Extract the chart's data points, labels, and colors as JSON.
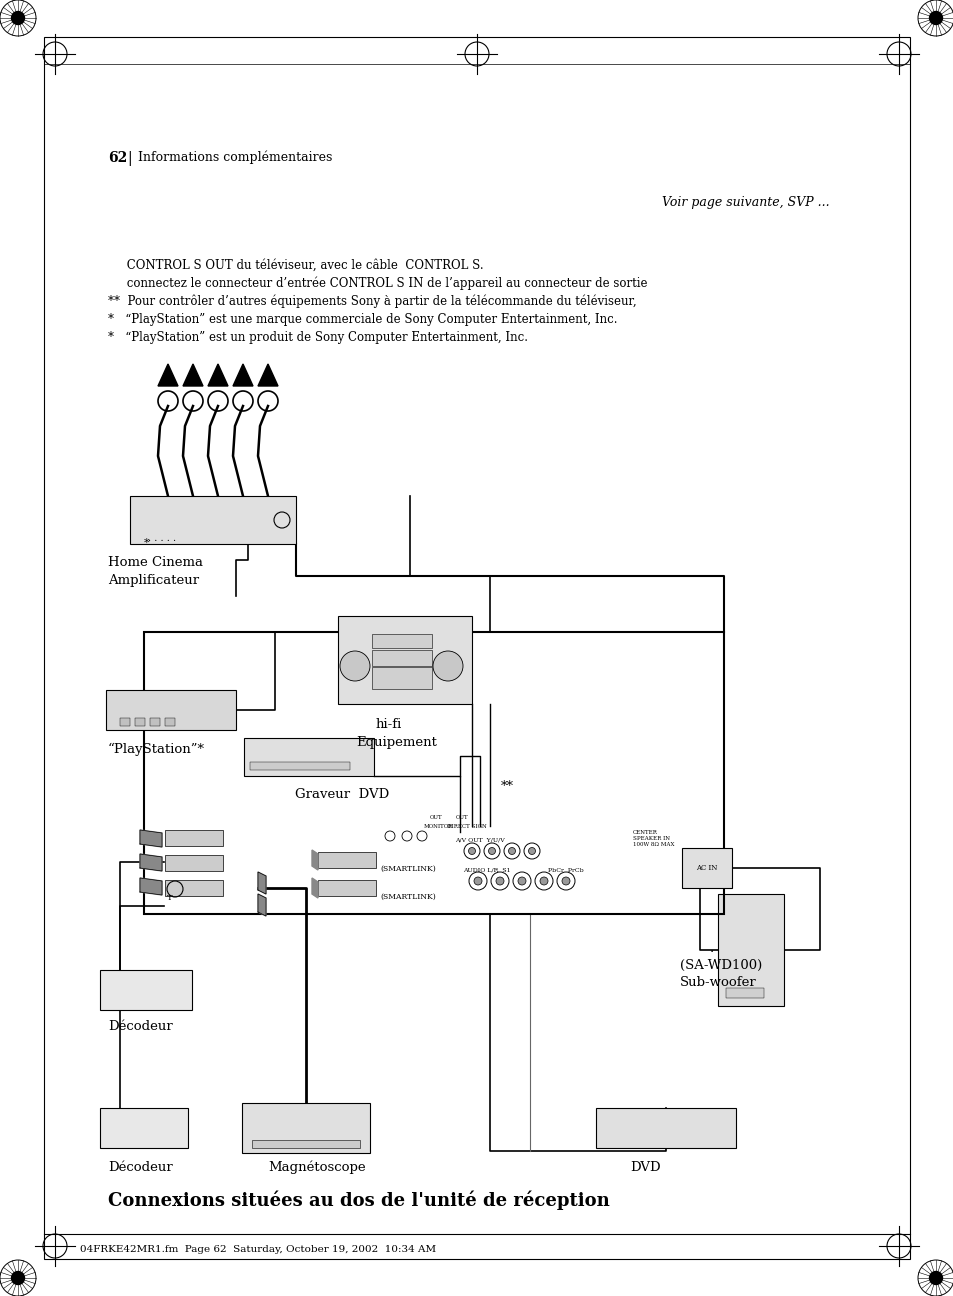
{
  "page_bg": "#ffffff",
  "title": "Connexions situées au dos de l'unité de réception",
  "header_text": "04FRKE42MR1.fm  Page 62  Saturday, October 19, 2002  10:34 AM",
  "footer_right": "Voir page suivante, SVP ...",
  "footer_page": "62",
  "footer_section": "Informations complémentaires",
  "footnote1": "*   “PlayStation” est un produit de Sony Computer Entertainment, Inc.",
  "footnote2": "*   “PlayStation” est une marque commerciale de Sony Computer Entertainment, Inc.",
  "footnote3": "**  Pour contrôler d’autres équipements Sony à partir de la télécommande du téléviseur,",
  "footnote4": "     connectez le connecteur d’entrée CONTROL S IN de l’appareil au connecteur de sortie",
  "footnote5": "     CONTROL S OUT du téléviseur, avec le câble  CONTROL S."
}
